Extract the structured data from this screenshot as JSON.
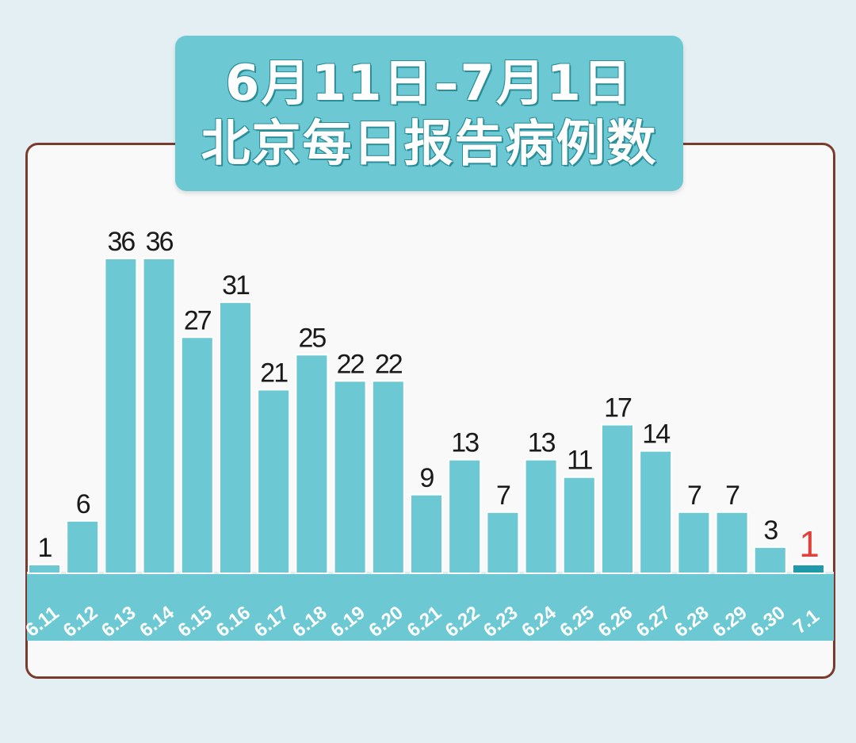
{
  "title": {
    "line1": "6月11日–7月1日",
    "line2": "北京每日报告病例数"
  },
  "colors": {
    "bar": "#6cc9d4",
    "bar_highlight": "#1f9aab",
    "value_label": "#1a1a1a",
    "value_label_highlight": "#e0413a",
    "axis_band": "#6cc9d4",
    "tick_label": "#ffffff",
    "panel_border": "#7a3b2c"
  },
  "chart_data": {
    "type": "bar",
    "categories": [
      "6.11",
      "6.12",
      "6.13",
      "6.14",
      "6.15",
      "6.16",
      "6.17",
      "6.18",
      "6.19",
      "6.20",
      "6.21",
      "6.22",
      "6.23",
      "6.24",
      "6.25",
      "6.26",
      "6.27",
      "6.28",
      "6.29",
      "6.30",
      "7.1"
    ],
    "values": [
      1,
      6,
      36,
      36,
      27,
      31,
      21,
      25,
      22,
      22,
      9,
      13,
      7,
      13,
      11,
      17,
      14,
      7,
      7,
      3,
      1
    ],
    "highlight_index": 20,
    "title": "6月11日–7月1日 北京每日报告病例数",
    "xlabel": "",
    "ylabel": "",
    "ylim": [
      0,
      36
    ],
    "grid": false
  }
}
